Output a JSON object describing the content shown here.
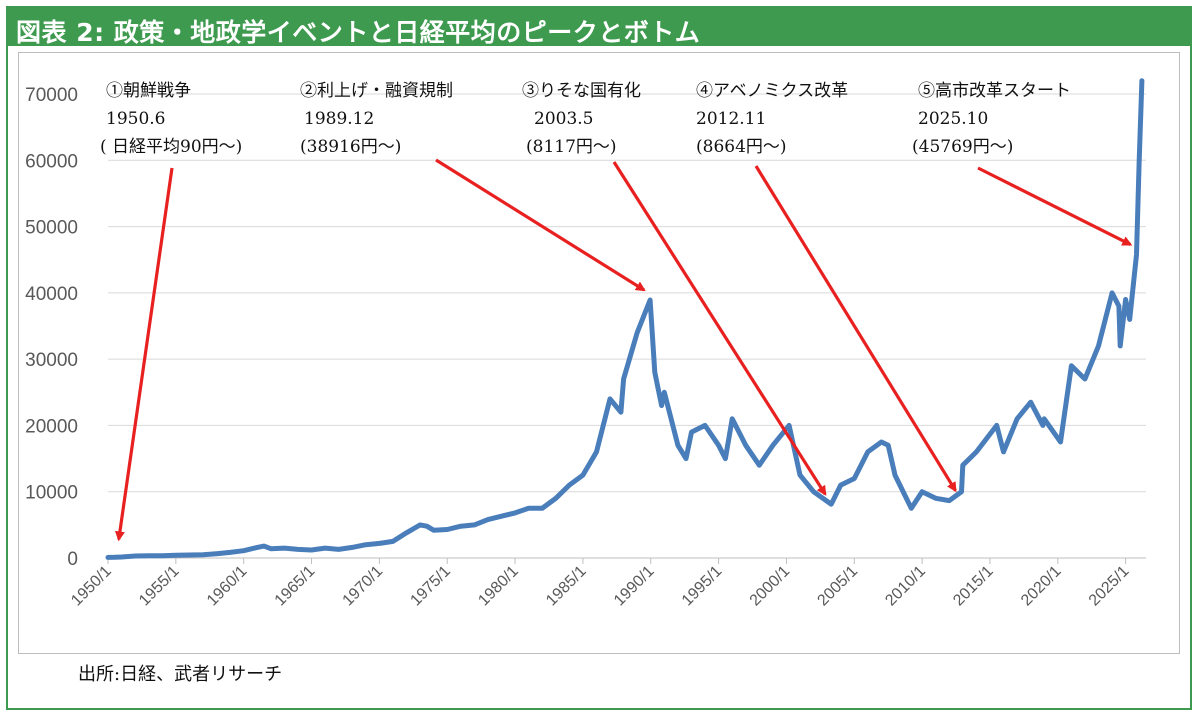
{
  "header": {
    "title": "図表 2: 政策・地政学イベントと日経平均のピークとボトム"
  },
  "source": "出所:日経、武者リサーチ",
  "colors": {
    "title_bar": "#3e9a4f",
    "line": "#4a7ebb",
    "arrow": "#e82020",
    "grid": "#d9d9d9"
  },
  "chart_data": {
    "type": "line",
    "title": "",
    "xlabel": "",
    "ylabel": "",
    "ylim": [
      0,
      70000
    ],
    "yticks": [
      0,
      10000,
      20000,
      30000,
      40000,
      50000,
      60000,
      70000
    ],
    "xlim": [
      1950.0,
      2026.5
    ],
    "xticks": [
      "1950/1",
      "1955/1",
      "1960/1",
      "1965/1",
      "1970/1",
      "1975/1",
      "1980/1",
      "1985/1",
      "1990/1",
      "1995/1",
      "2000/1",
      "2005/1",
      "2010/1",
      "2015/1",
      "2020/1",
      "2025/1"
    ],
    "grid": true,
    "series": [
      {
        "name": "",
        "x": [
          1950.0,
          1950.5,
          1951,
          1952,
          1953,
          1954,
          1955,
          1956,
          1957,
          1958,
          1959,
          1960,
          1961,
          1961.5,
          1962,
          1963,
          1964,
          1965,
          1966,
          1967,
          1968,
          1969,
          1970,
          1971,
          1972,
          1973,
          1973.5,
          1974,
          1975,
          1976,
          1977,
          1978,
          1979,
          1980,
          1981,
          1982,
          1983,
          1984,
          1985,
          1986,
          1987,
          1987.8,
          1988,
          1989,
          1989.95,
          1990.3,
          1990.8,
          1991,
          1992,
          1992.6,
          1993,
          1994,
          1995,
          1995.5,
          1996,
          1997,
          1998,
          1999,
          2000.2,
          2001,
          2002,
          2003.3,
          2004,
          2005,
          2006,
          2007,
          2007.5,
          2008,
          2009.2,
          2010,
          2011,
          2012,
          2012.9,
          2013,
          2013.5,
          2014,
          2015.5,
          2016,
          2017,
          2018,
          2018.9,
          2019,
          2020.2,
          2021,
          2022,
          2023,
          2024,
          2024.5,
          2024.6,
          2025,
          2025.3,
          2025.8,
          2026,
          2026.2
        ],
        "y": [
          90,
          100,
          150,
          300,
          350,
          350,
          400,
          450,
          500,
          650,
          850,
          1100,
          1600,
          1800,
          1400,
          1500,
          1300,
          1200,
          1500,
          1300,
          1600,
          2000,
          2200,
          2500,
          3800,
          5000,
          4800,
          4200,
          4300,
          4800,
          5000,
          5800,
          6300,
          6800,
          7500,
          7500,
          9000,
          11000,
          12500,
          16000,
          24000,
          22000,
          27000,
          34000,
          38916,
          28000,
          23000,
          25000,
          17000,
          15000,
          19000,
          20000,
          17000,
          15000,
          21000,
          17000,
          14000,
          17000,
          20000,
          12500,
          10000,
          8117,
          11000,
          12000,
          16000,
          17500,
          17000,
          12500,
          7500,
          10000,
          9000,
          8664,
          10000,
          14000,
          15000,
          16000,
          20000,
          16000,
          21000,
          23500,
          20000,
          21000,
          17500,
          29000,
          27000,
          32000,
          40000,
          38000,
          32000,
          39000,
          36000,
          45769,
          60000,
          72000
        ]
      }
    ],
    "annotations": [
      {
        "lines": [
          "①朝鮮戦争",
          "1950.6",
          "( 日経平均90円～)"
        ],
        "x": 1950.5,
        "y": 90
      },
      {
        "lines": [
          "②利上げ・融資規制",
          "1989.12",
          "(38916円～)"
        ],
        "x": 1989.95,
        "y": 38916
      },
      {
        "lines": [
          "③りそな国有化",
          "2003.5",
          "(8117円～)"
        ],
        "x": 2003.3,
        "y": 8117
      },
      {
        "lines": [
          "④アベノミクス改革",
          "2012.11",
          "(8664円～)"
        ],
        "x": 2012.9,
        "y": 8664
      },
      {
        "lines": [
          "⑤高市改革スタート",
          "2025.10",
          "(45769円～)"
        ],
        "x": 2025.8,
        "y": 45769
      }
    ]
  }
}
